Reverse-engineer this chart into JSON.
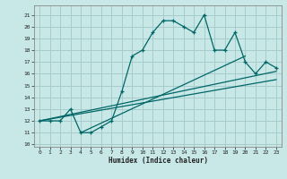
{
  "title": "",
  "xlabel": "Humidex (Indice chaleur)",
  "bg_color": "#c8e8e8",
  "grid_color": "#a8cccc",
  "line_color": "#006666",
  "xlim": [
    -0.5,
    23.5
  ],
  "ylim": [
    9.8,
    21.8
  ],
  "yticks": [
    10,
    11,
    12,
    13,
    14,
    15,
    16,
    17,
    18,
    19,
    20,
    21
  ],
  "xticks": [
    0,
    1,
    2,
    3,
    4,
    5,
    6,
    7,
    8,
    9,
    10,
    11,
    12,
    13,
    14,
    15,
    16,
    17,
    18,
    19,
    20,
    21,
    22,
    23
  ],
  "series1_x": [
    0,
    1,
    2,
    3,
    4,
    5,
    6,
    7,
    8,
    9,
    10,
    11,
    12,
    13,
    14,
    15,
    16,
    17,
    18,
    19,
    20,
    21,
    22,
    23
  ],
  "series1_y": [
    12,
    12,
    12,
    13,
    11,
    11,
    11.5,
    12,
    14.5,
    17.5,
    18,
    19.5,
    20.5,
    20.5,
    20,
    19.5,
    21,
    18,
    18,
    19.5,
    17,
    16,
    17,
    16.5
  ],
  "series2_straight": [
    {
      "x": [
        0,
        23
      ],
      "y": [
        12,
        16.2
      ]
    },
    {
      "x": [
        0,
        23
      ],
      "y": [
        12,
        15.5
      ]
    },
    {
      "x": [
        4,
        20
      ],
      "y": [
        11,
        17.5
      ]
    }
  ],
  "markers_x": [
    0,
    1,
    2,
    3,
    4,
    5,
    6,
    7,
    8,
    9,
    10,
    11,
    12,
    13,
    14,
    15,
    16,
    17,
    18,
    19,
    20,
    21,
    22,
    23
  ],
  "markers_y": [
    12,
    12,
    12,
    13,
    11,
    11,
    11.5,
    12,
    14.5,
    17.5,
    18,
    19.5,
    20.5,
    20.5,
    20,
    19.5,
    21,
    18,
    18,
    19.5,
    17,
    16,
    17,
    16.5
  ]
}
